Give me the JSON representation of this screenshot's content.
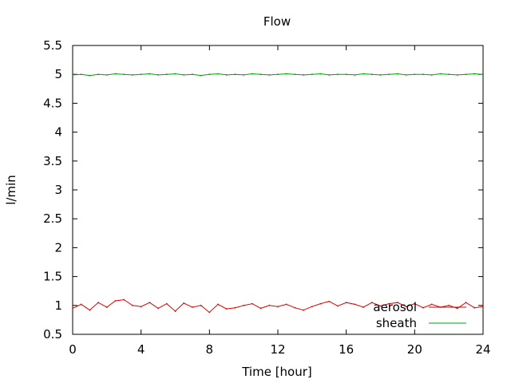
{
  "chart_data": {
    "type": "line",
    "title": "Flow",
    "xlabel": "Time [hour]",
    "ylabel": "l/min",
    "xlim": [
      0,
      24
    ],
    "ylim": [
      0.5,
      5.5
    ],
    "xticks": [
      "0",
      "4",
      "8",
      "12",
      "16",
      "20",
      "24"
    ],
    "yticks": [
      "0.5",
      "1",
      "1.5",
      "2",
      "2.5",
      "3",
      "3.5",
      "4",
      "4.5",
      "5",
      "5.5"
    ],
    "grid": false,
    "legend_position": "bottom-right",
    "series": [
      {
        "name": "aerosol",
        "color": "#dd0000",
        "x": [
          0,
          0.5,
          1,
          1.5,
          2,
          2.5,
          3,
          3.5,
          4,
          4.5,
          5,
          5.5,
          6,
          6.5,
          7,
          7.5,
          8,
          8.5,
          9,
          9.5,
          10,
          10.5,
          11,
          11.5,
          12,
          12.5,
          13,
          13.5,
          14,
          14.5,
          15,
          15.5,
          16,
          16.5,
          17,
          17.5,
          18,
          18.5,
          19,
          19.5,
          20,
          20.5,
          21,
          21.5,
          22,
          22.5,
          23,
          23.5,
          24
        ],
        "values": [
          0.95,
          1.02,
          0.92,
          1.05,
          0.97,
          1.08,
          1.1,
          1.0,
          0.98,
          1.05,
          0.95,
          1.03,
          0.9,
          1.04,
          0.97,
          1.0,
          0.88,
          1.02,
          0.94,
          0.96,
          1.0,
          1.03,
          0.95,
          1.0,
          0.98,
          1.02,
          0.96,
          0.92,
          0.98,
          1.03,
          1.07,
          0.99,
          1.05,
          1.02,
          0.97,
          1.05,
          0.99,
          1.03,
          1.05,
          0.98,
          1.03,
          0.96,
          1.02,
          0.97,
          1.0,
          0.95,
          1.05,
          0.96,
          0.98
        ]
      },
      {
        "name": "sheath",
        "color": "#00a000",
        "x": [
          0,
          0.5,
          1,
          1.5,
          2,
          2.5,
          3,
          3.5,
          4,
          4.5,
          5,
          5.5,
          6,
          6.5,
          7,
          7.5,
          8,
          8.5,
          9,
          9.5,
          10,
          10.5,
          11,
          11.5,
          12,
          12.5,
          13,
          13.5,
          14,
          14.5,
          15,
          15.5,
          16,
          16.5,
          17,
          17.5,
          18,
          18.5,
          19,
          19.5,
          20,
          20.5,
          21,
          21.5,
          22,
          22.5,
          23,
          23.5,
          24
        ],
        "values": [
          4.99,
          5.0,
          4.98,
          5.0,
          4.99,
          5.01,
          5.0,
          4.99,
          5.0,
          5.01,
          4.99,
          5.0,
          5.01,
          4.99,
          5.0,
          4.98,
          5.0,
          5.01,
          4.99,
          5.0,
          4.99,
          5.01,
          5.0,
          4.99,
          5.0,
          5.01,
          5.0,
          4.99,
          5.0,
          5.01,
          4.99,
          5.0,
          5.0,
          4.99,
          5.01,
          5.0,
          4.99,
          5.0,
          5.01,
          4.99,
          5.0,
          5.0,
          4.99,
          5.01,
          5.0,
          4.99,
          5.0,
          5.01,
          5.0
        ]
      }
    ]
  }
}
